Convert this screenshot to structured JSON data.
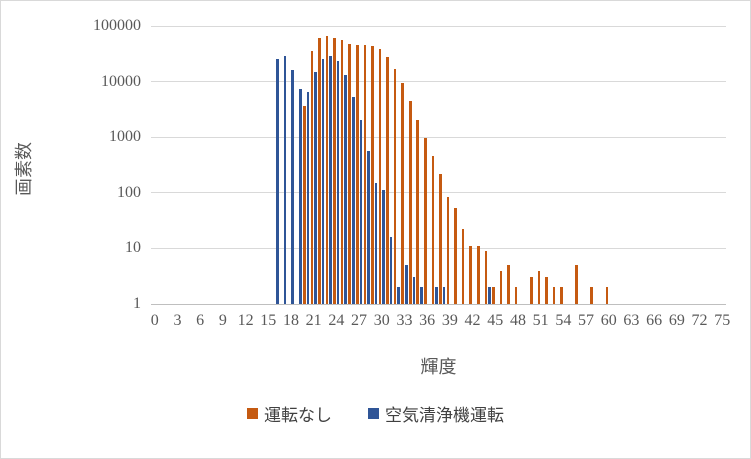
{
  "chart": {
    "y_axis": {
      "title": "画素数",
      "ticks": [
        "1",
        "10",
        "100",
        "1000",
        "10000",
        "100000"
      ]
    },
    "x_axis": {
      "title": "輝度",
      "tick_labels": [
        "0",
        "3",
        "6",
        "9",
        "12",
        "15",
        "18",
        "21",
        "24",
        "27",
        "30",
        "33",
        "36",
        "39",
        "42",
        "45",
        "48",
        "51",
        "54",
        "57",
        "60",
        "63",
        "66",
        "69",
        "72",
        "75"
      ],
      "tick_step": 3
    },
    "legend": [
      {
        "label": "運転なし",
        "color": "#C55A11"
      },
      {
        "label": "空気清浄機運転",
        "color": "#2F5597"
      }
    ],
    "colors": {
      "gridline": "#d9d9d9",
      "axis_line": "#bfbfbf",
      "tick_text": "#595959"
    }
  },
  "chart_data": {
    "type": "bar",
    "title": "",
    "xlabel": "輝度",
    "ylabel": "画素数",
    "y_scale": "log",
    "ylim": [
      1,
      100000
    ],
    "grid": true,
    "legend_position": "bottom",
    "categories": [
      0,
      1,
      2,
      3,
      4,
      5,
      6,
      7,
      8,
      9,
      10,
      11,
      12,
      13,
      14,
      15,
      16,
      17,
      18,
      19,
      20,
      21,
      22,
      23,
      24,
      25,
      26,
      27,
      28,
      29,
      30,
      31,
      32,
      33,
      34,
      35,
      36,
      37,
      38,
      39,
      40,
      41,
      42,
      43,
      44,
      45,
      46,
      47,
      48,
      49,
      50,
      51,
      52,
      53,
      54,
      55,
      56,
      57,
      58,
      59,
      60,
      61,
      62,
      63,
      64,
      65,
      66,
      67,
      68,
      69,
      70,
      71,
      72,
      73,
      74,
      75
    ],
    "series": [
      {
        "name": "運転なし",
        "color": "#C55A11",
        "values": [
          0,
          0,
          0,
          0,
          0,
          0,
          0,
          0,
          0,
          0,
          0,
          0,
          0,
          0,
          0,
          0,
          0,
          0,
          0,
          0,
          3700,
          36000,
          60000,
          65000,
          61000,
          56000,
          47000,
          45000,
          45000,
          43000,
          38000,
          28000,
          17000,
          9500,
          4500,
          2000,
          950,
          450,
          220,
          85,
          53,
          22,
          11,
          11,
          9,
          2,
          4,
          5,
          2,
          0,
          3,
          4,
          3,
          2,
          2,
          0,
          5,
          0,
          2,
          0,
          2,
          0,
          0,
          0,
          0,
          0,
          0,
          0,
          0,
          0,
          0,
          0,
          0,
          0,
          0,
          0
        ]
      },
      {
        "name": "空気清浄機運転",
        "color": "#2F5597",
        "values": [
          0,
          0,
          0,
          0,
          0,
          0,
          0,
          0,
          0,
          0,
          0,
          0,
          0,
          0,
          0,
          0,
          25000,
          29000,
          16500,
          7400,
          6500,
          15000,
          25000,
          29000,
          23000,
          13000,
          5300,
          2000,
          570,
          150,
          110,
          16,
          2,
          5,
          3,
          2,
          0,
          2,
          2,
          0,
          0,
          0,
          0,
          0,
          2,
          0,
          0,
          0,
          0,
          0,
          0,
          0,
          0,
          0,
          0,
          0,
          0,
          0,
          0,
          0,
          0,
          0,
          0,
          0,
          0,
          0,
          0,
          0,
          0,
          0,
          0,
          0,
          0,
          0,
          0,
          0
        ]
      }
    ]
  }
}
